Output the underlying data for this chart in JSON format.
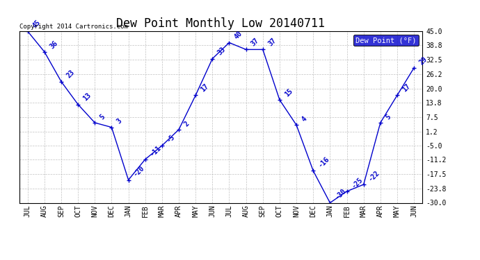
{
  "title": "Dew Point Monthly Low 20140711",
  "copyright": "Copyright 2014 Cartronics.com",
  "legend_label": "Dew Point (°F)",
  "x_labels": [
    "JUL",
    "AUG",
    "SEP",
    "OCT",
    "NOV",
    "DEC",
    "JAN",
    "FEB",
    "MAR",
    "APR",
    "MAY",
    "JUN",
    "JUL",
    "AUG",
    "SEP",
    "OCT",
    "NOV",
    "DEC",
    "JAN",
    "FEB",
    "MAR",
    "APR",
    "MAY",
    "JUN"
  ],
  "y_values": [
    45,
    36,
    23,
    13,
    5,
    3,
    -20,
    -11,
    -5,
    2,
    17,
    33,
    40,
    37,
    37,
    15,
    4,
    -16,
    -30,
    -25,
    -22,
    5,
    17,
    29
  ],
  "ylim": [
    -30,
    45
  ],
  "yticks": [
    45.0,
    38.8,
    32.5,
    26.2,
    20.0,
    13.8,
    7.5,
    1.2,
    -5.0,
    -11.2,
    -17.5,
    -23.8,
    -30.0
  ],
  "ytick_labels": [
    "45.0",
    "38.8",
    "32.5",
    "26.2",
    "20.0",
    "13.8",
    "7.5",
    "1.2",
    "-5.0",
    "-11.2",
    "-17.5",
    "-23.8",
    "-30.0"
  ],
  "line_color": "#0000cc",
  "marker_color": "#0000cc",
  "grid_color": "#c0c0c0",
  "bg_color": "#ffffff",
  "title_fontsize": 12,
  "annotation_fontsize": 7,
  "tick_fontsize": 7,
  "legend_bg": "#0000cc",
  "legend_fg": "#ffffff"
}
